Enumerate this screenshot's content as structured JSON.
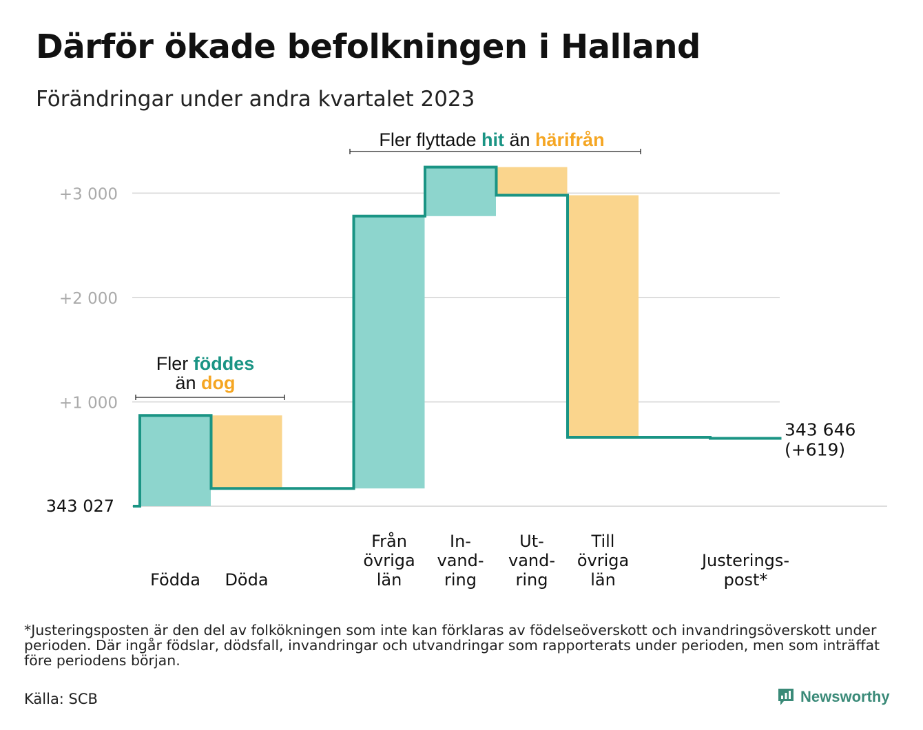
{
  "title": "Därför ökade befolkningen i Halland",
  "subtitle": "Förändringar under andra kvartalet 2023",
  "annotations": {
    "born": {
      "line1": "Fler ",
      "hl1": "föddes",
      "line2": "än ",
      "hl2": "dog"
    },
    "moved": {
      "pre": "Fler flyttade ",
      "hl1": "hit",
      "mid": " än ",
      "hl2": "härifrån"
    }
  },
  "chart_data": {
    "type": "waterfall",
    "start_value": 343027,
    "start_label": "343 027",
    "end_label_value": "343 646",
    "end_label_change": "(+619)",
    "y_ticks": [
      {
        "value": 1000,
        "label": "+1 000"
      },
      {
        "value": 2000,
        "label": "+2 000"
      },
      {
        "value": 3000,
        "label": "+3 000"
      }
    ],
    "ylim": [
      0,
      3200
    ],
    "steps": [
      {
        "label": [
          "Födda"
        ],
        "change": 870,
        "kind": "increase"
      },
      {
        "label": [
          "Döda"
        ],
        "change": -700,
        "kind": "decrease"
      },
      {
        "label": [],
        "change": 0,
        "kind": "spacer"
      },
      {
        "label": [
          "Från",
          "övriga",
          "län"
        ],
        "change": 2610,
        "kind": "increase"
      },
      {
        "label": [
          "In-",
          "vand-",
          "ring"
        ],
        "change": 470,
        "kind": "increase"
      },
      {
        "label": [
          "Ut-",
          "vand-",
          "ring"
        ],
        "change": -270,
        "kind": "decrease"
      },
      {
        "label": [
          "Till",
          "övriga",
          "län"
        ],
        "change": -2320,
        "kind": "decrease"
      },
      {
        "label": [],
        "change": 0,
        "kind": "spacer"
      },
      {
        "label": [
          "Justerings-",
          "post*"
        ],
        "change": -10,
        "kind": "decrease"
      }
    ]
  },
  "colors": {
    "increase": "#8dd5cd",
    "decrease": "#fad58d",
    "line": "#1a9484",
    "teal_text": "#1a9484",
    "orange_text": "#f5a623",
    "grid": "#dddddd",
    "tick_text": "#aaaaaa"
  },
  "footnote": "*Justeringsposten är den del av folkökningen som inte kan förklaras av födelseöverskott och invandringsöverskott under perioden. Där ingår födslar, dödsfall, invandringar och utvandringar som rapporterats under perioden, men som inträffat före periodens början.",
  "source": "Källa: SCB",
  "brand": {
    "name": "Newsworthy",
    "icon": "newsworthy-logo-icon"
  }
}
